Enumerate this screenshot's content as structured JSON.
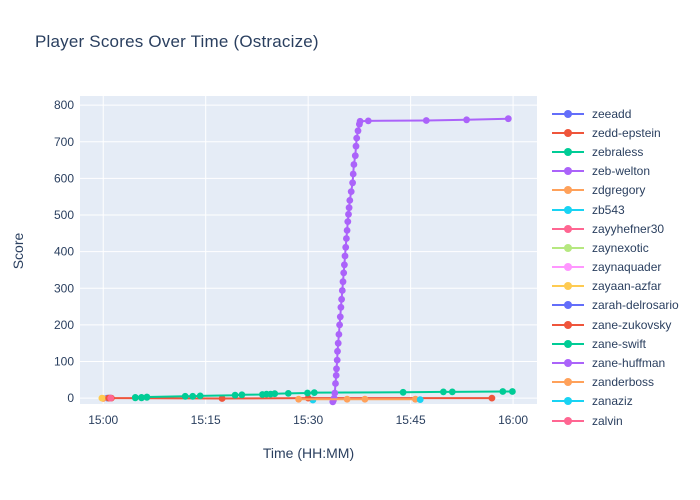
{
  "title": "Player Scores Over Time (Ostracize)",
  "chart_data": {
    "type": "line",
    "title": "Player Scores Over Time (Ostracize)",
    "xlabel": "Time (HH:MM)",
    "ylabel": "Score",
    "x_unit": "minutes after 15:00",
    "xlim": [
      -3.4,
      63.5
    ],
    "ylim": [
      -16,
      825
    ],
    "grid": true,
    "legend_position": "right",
    "plot_bg": "#E5ECF6",
    "grid_color": "#FFFFFF",
    "font_color": "#2a3f5f",
    "x_ticks": [
      {
        "t": 0,
        "label": "15:00"
      },
      {
        "t": 15,
        "label": "15:15"
      },
      {
        "t": 30,
        "label": "15:30"
      },
      {
        "t": 45,
        "label": "15:45"
      },
      {
        "t": 60,
        "label": "16:00"
      }
    ],
    "y_ticks": [
      0,
      100,
      200,
      300,
      400,
      500,
      600,
      700,
      800
    ],
    "series": [
      {
        "name": "zeeadd",
        "color": "#636EFA",
        "points": [
          [
            0.6,
            0
          ]
        ]
      },
      {
        "name": "zedd-epstein",
        "color": "#EF553B",
        "points": [
          [
            1.2,
            0
          ]
        ]
      },
      {
        "name": "zebraless",
        "color": "#00CC96",
        "points": [
          [
            4.7,
            1
          ],
          [
            5.6,
            1
          ],
          [
            6.4,
            2
          ]
        ]
      },
      {
        "name": "zeb-welton",
        "color": "#AB63FA",
        "points": [
          [
            0.9,
            0
          ]
        ]
      },
      {
        "name": "zdgregory",
        "color": "#FFA15A",
        "points": [
          [
            0.0,
            -1
          ]
        ]
      },
      {
        "name": "zb543",
        "color": "#19D3F3",
        "points": [
          [
            30.7,
            -5
          ]
        ]
      },
      {
        "name": "zayyhefner30",
        "color": "#FF6692",
        "points": [
          [
            1.0,
            0
          ]
        ]
      },
      {
        "name": "zaynexotic",
        "color": "#B6E880",
        "points": [
          [
            0.8,
            0
          ]
        ]
      },
      {
        "name": "zaynaquader",
        "color": "#FF97FF",
        "points": [
          [
            0.9,
            0
          ]
        ]
      },
      {
        "name": "zayaan-azfar",
        "color": "#FECB52",
        "points": [
          [
            -0.2,
            0
          ]
        ]
      },
      {
        "name": "zarah-delrosario",
        "color": "#636EFA",
        "points": [
          [
            1.0,
            0
          ]
        ]
      },
      {
        "name": "zane-zukovsky",
        "color": "#EF553B",
        "points": [
          [
            0.8,
            0
          ],
          [
            17.4,
            -1
          ],
          [
            30.0,
            0
          ],
          [
            56.9,
            0
          ]
        ]
      },
      {
        "name": "zane-swift",
        "color": "#00CC96",
        "points": [
          [
            4.7,
            2
          ],
          [
            5.6,
            2
          ],
          [
            6.4,
            3
          ],
          [
            12.0,
            5
          ],
          [
            13.1,
            5
          ],
          [
            14.2,
            6
          ],
          [
            19.3,
            8
          ],
          [
            20.3,
            9
          ],
          [
            23.3,
            10
          ],
          [
            23.9,
            11
          ],
          [
            24.5,
            11
          ],
          [
            25.1,
            12
          ],
          [
            27.1,
            13
          ],
          [
            29.9,
            14
          ],
          [
            30.9,
            15
          ],
          [
            43.9,
            16
          ],
          [
            49.8,
            17
          ],
          [
            51.1,
            17
          ],
          [
            58.5,
            18
          ],
          [
            59.9,
            18
          ]
        ]
      },
      {
        "name": "zane-huffman",
        "color": "#AB63FA",
        "points": [
          [
            33.6,
            -10
          ],
          [
            33.7,
            -6
          ],
          [
            33.8,
            0
          ],
          [
            33.9,
            14
          ],
          [
            34.0,
            40
          ],
          [
            34.1,
            62
          ],
          [
            34.15,
            80
          ],
          [
            34.25,
            104
          ],
          [
            34.3,
            128
          ],
          [
            34.4,
            150
          ],
          [
            34.5,
            174
          ],
          [
            34.6,
            200
          ],
          [
            34.7,
            222
          ],
          [
            34.8,
            248
          ],
          [
            34.9,
            270
          ],
          [
            35.0,
            294
          ],
          [
            35.1,
            318
          ],
          [
            35.2,
            342
          ],
          [
            35.3,
            364
          ],
          [
            35.4,
            388
          ],
          [
            35.5,
            412
          ],
          [
            35.6,
            436
          ],
          [
            35.7,
            458
          ],
          [
            35.8,
            482
          ],
          [
            35.9,
            502
          ],
          [
            36.0,
            520
          ],
          [
            36.1,
            540
          ],
          [
            36.3,
            564
          ],
          [
            36.5,
            588
          ],
          [
            36.6,
            612
          ],
          [
            36.7,
            638
          ],
          [
            36.9,
            662
          ],
          [
            37.0,
            688
          ],
          [
            37.1,
            710
          ],
          [
            37.3,
            730
          ],
          [
            37.5,
            748
          ],
          [
            37.6,
            756
          ],
          [
            38.8,
            757
          ],
          [
            47.3,
            758
          ],
          [
            53.2,
            760
          ],
          [
            59.3,
            763
          ]
        ]
      },
      {
        "name": "zanderboss",
        "color": "#FFA15A",
        "points": [
          [
            28.6,
            -3
          ],
          [
            35.7,
            -3
          ],
          [
            38.3,
            -3
          ],
          [
            45.7,
            -3
          ]
        ]
      },
      {
        "name": "zanaziz",
        "color": "#19D3F3",
        "points": [
          [
            46.4,
            -4
          ]
        ]
      },
      {
        "name": "zalvin",
        "color": "#FF6692",
        "points": [
          [
            1.1,
            0
          ]
        ]
      }
    ]
  }
}
